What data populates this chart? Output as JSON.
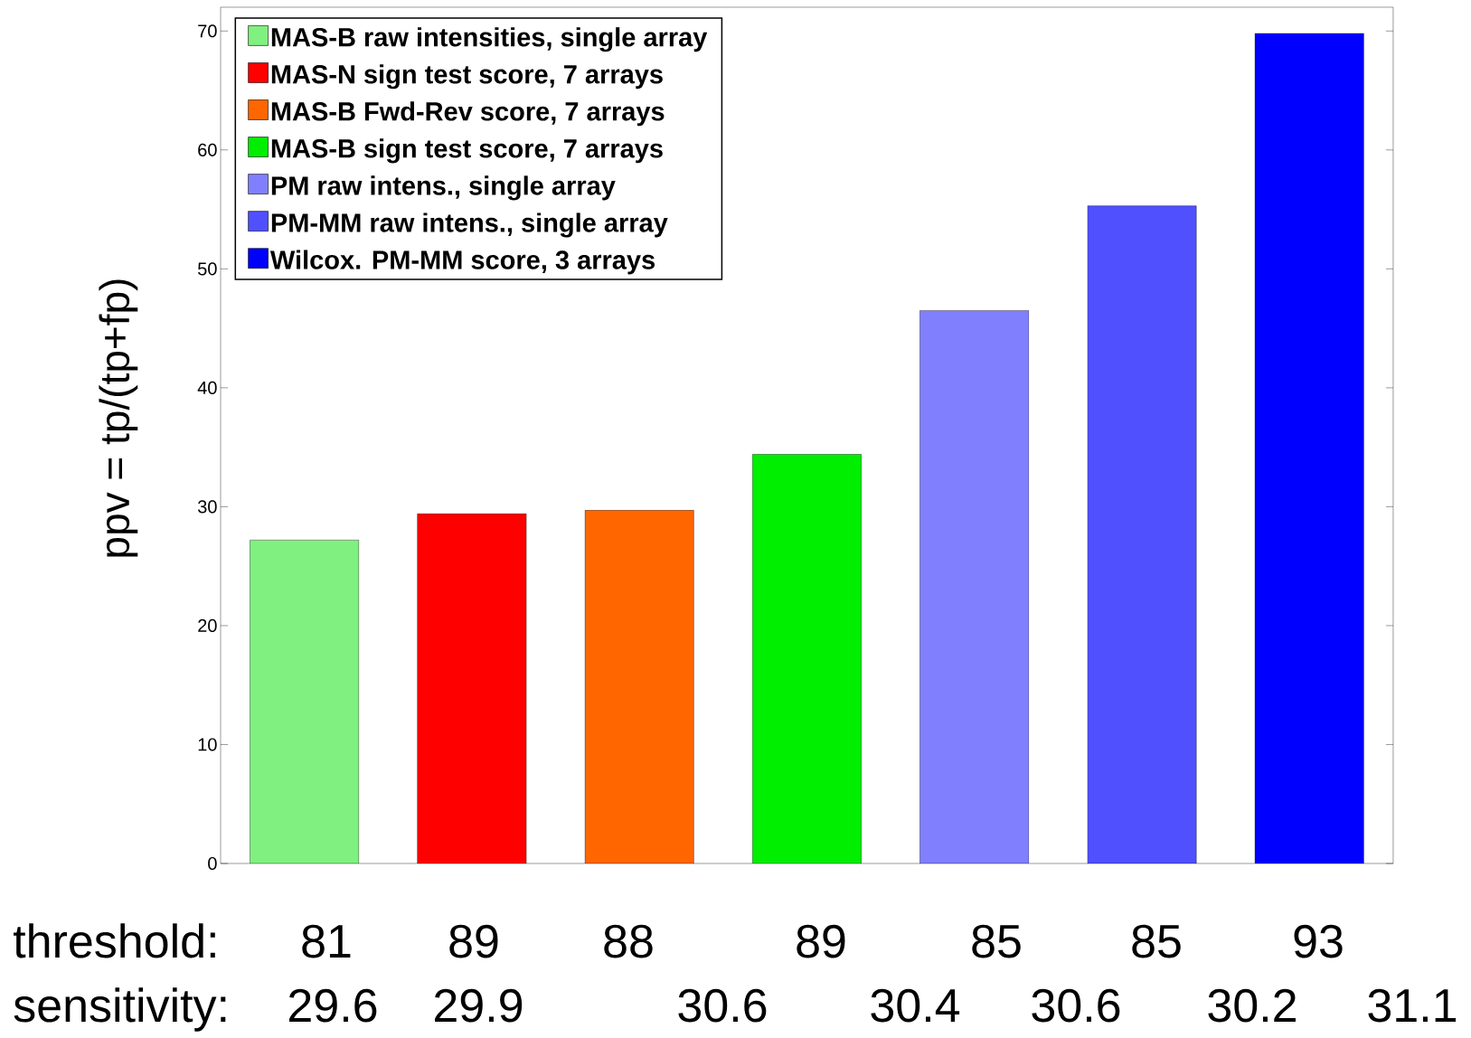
{
  "chart_data": {
    "type": "bar",
    "ylabel": "ppv = tp/(tp+fp)",
    "categories": [
      null,
      null,
      null,
      null,
      null,
      null,
      null
    ],
    "series": [
      {
        "name": "MAS-B raw intensities, single array",
        "color": "#80f080",
        "values": [
          27.2,
          null,
          null,
          null,
          null,
          null,
          null
        ]
      },
      {
        "name": "MAS-N sign test score, 7 arrays",
        "color": "#ff0000",
        "values": [
          null,
          29.4,
          null,
          null,
          null,
          null,
          null
        ]
      },
      {
        "name": "MAS-B Fwd-Rev score, 7 arrays",
        "color": "#ff6600",
        "values": [
          null,
          null,
          29.7,
          null,
          null,
          null,
          null
        ]
      },
      {
        "name": "MAS-B sign test score, 7 arrays",
        "color": "#00ee00",
        "values": [
          null,
          null,
          null,
          34.4,
          null,
          null,
          null
        ]
      },
      {
        "name": "PM raw intens., single array",
        "color": "#8080ff",
        "values": [
          null,
          null,
          null,
          null,
          46.5,
          null,
          null
        ]
      },
      {
        "name": "PM-MM raw intens., single array",
        "color": "#5050ff",
        "values": [
          null,
          null,
          null,
          null,
          null,
          55.3,
          null
        ]
      },
      {
        "name": "Wilcox. PM-MM score, 3 arrays",
        "color": "#0000ff",
        "values": [
          null,
          null,
          null,
          null,
          null,
          null,
          69.8
        ]
      }
    ],
    "ylim": [
      0,
      72
    ],
    "yticks": [
      0,
      10,
      20,
      30,
      40,
      50,
      60,
      70
    ],
    "tick_labels": "y",
    "legend": "top left",
    "stacked": true,
    "annotations": [
      "threshold:",
      "81",
      "89",
      "88",
      "89",
      "85",
      "85",
      "93",
      "sensitivity:",
      "29.6",
      "29.9",
      "30.6",
      "30.4",
      "30.6",
      "30.2",
      "31.1"
    ]
  }
}
